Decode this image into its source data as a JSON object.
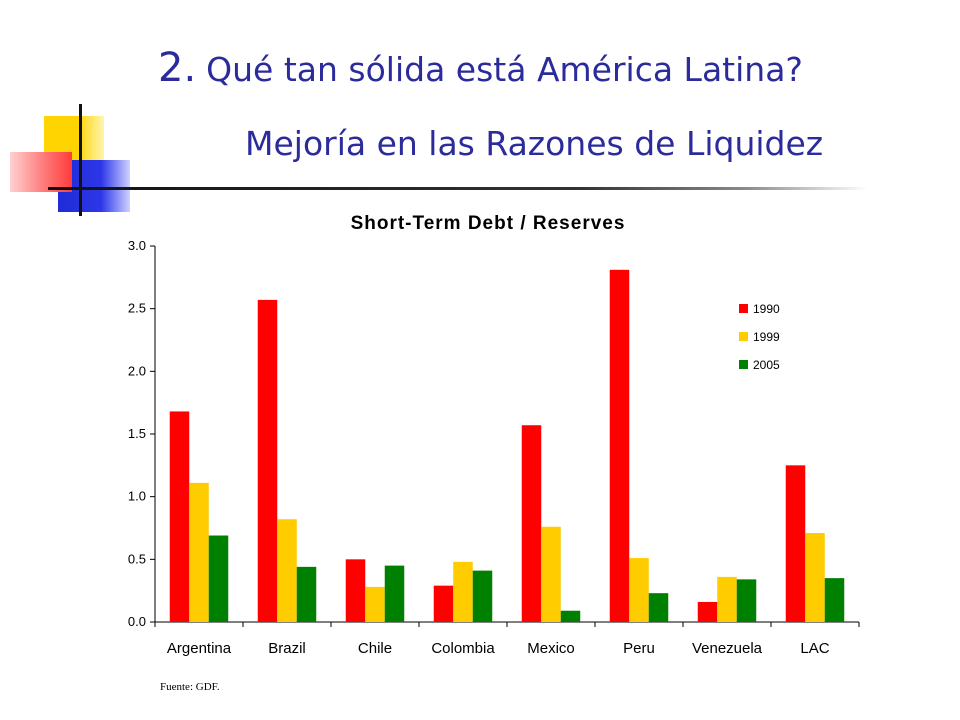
{
  "header": {
    "number": "2.",
    "title": "Qué tan sólida está América Latina?",
    "subtitle": "Mejoría en las Razones de Liquidez"
  },
  "footer": {
    "source": "Fuente: GDF."
  },
  "chart_data": {
    "type": "bar",
    "title": "Short-Term Debt / Reserves",
    "xlabel": "",
    "ylabel": "",
    "ylim": [
      0,
      3.0
    ],
    "yticks": [
      "0.0",
      "0.5",
      "1.0",
      "1.5",
      "2.0",
      "2.5",
      "3.0"
    ],
    "grid": false,
    "legend_position": "top-right",
    "categories": [
      "Argentina",
      "Brazil",
      "Chile",
      "Colombia",
      "Mexico",
      "Peru",
      "Venezuela",
      "LAC"
    ],
    "series": [
      {
        "name": "1990",
        "color": "#ff0000",
        "values": [
          1.68,
          2.57,
          0.5,
          0.29,
          1.57,
          2.81,
          0.16,
          1.25
        ]
      },
      {
        "name": "1999",
        "color": "#ffcc00",
        "values": [
          1.11,
          0.82,
          0.28,
          0.48,
          0.76,
          0.51,
          0.36,
          0.71
        ]
      },
      {
        "name": "2005",
        "color": "#008000",
        "values": [
          0.69,
          0.44,
          0.45,
          0.41,
          0.09,
          0.23,
          0.34,
          0.35
        ]
      }
    ]
  }
}
